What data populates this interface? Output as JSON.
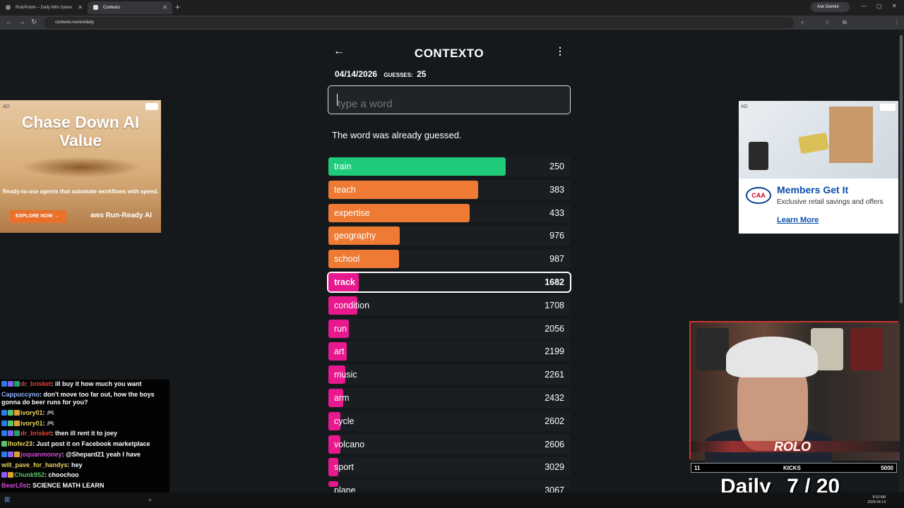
{
  "browser": {
    "tabs": [
      {
        "label": "RoloPolotv – Daily Mini Game"
      },
      {
        "label": "Contexto"
      }
    ],
    "url": "contexto.me/en/daily",
    "gemini_label": "Ask Gemini"
  },
  "game": {
    "title": "CONTEXTO",
    "date": "04/14/2026",
    "guesses_label": "GUESSES:",
    "guesses_count": "25",
    "input_placeholder": "type a word",
    "message": "The word was already guessed.",
    "guesses": [
      {
        "word": "train",
        "rank": "250",
        "color": "#1fcb7a",
        "fill": 0.73
      },
      {
        "word": "teach",
        "rank": "383",
        "color": "#ee7a33",
        "fill": 0.617
      },
      {
        "word": "expertise",
        "rank": "433",
        "color": "#ee7a33",
        "fill": 0.58
      },
      {
        "word": "geography",
        "rank": "976",
        "color": "#ee7a33",
        "fill": 0.295
      },
      {
        "word": "school",
        "rank": "987",
        "color": "#ee7a33",
        "fill": 0.29
      },
      {
        "word": "track",
        "rank": "1682",
        "color": "#e8188f",
        "fill": 0.125,
        "highlighted": true
      },
      {
        "word": "condition",
        "rank": "1708",
        "color": "#e8188f",
        "fill": 0.12
      },
      {
        "word": "run",
        "rank": "2056",
        "color": "#e8188f",
        "fill": 0.085
      },
      {
        "word": "art",
        "rank": "2199",
        "color": "#e8188f",
        "fill": 0.075
      },
      {
        "word": "music",
        "rank": "2261",
        "color": "#e8188f",
        "fill": 0.07
      },
      {
        "word": "arm",
        "rank": "2432",
        "color": "#e8188f",
        "fill": 0.06
      },
      {
        "word": "cycle",
        "rank": "2602",
        "color": "#e8188f",
        "fill": 0.05
      },
      {
        "word": "volcano",
        "rank": "2606",
        "color": "#e8188f",
        "fill": 0.05
      },
      {
        "word": "sport",
        "rank": "3029",
        "color": "#e8188f",
        "fill": 0.04
      },
      {
        "word": "plane",
        "rank": "3067",
        "color": "#e8188f",
        "fill": 0.04
      }
    ]
  },
  "ads": {
    "ad_label": "AD",
    "left": {
      "headline": "Chase Down AI Value",
      "sub": "Ready-to-use agents that automate workflows with speed.",
      "cta": "EXPLORE NOW →",
      "brand": "aws Run-Ready AI"
    },
    "right": {
      "logo": "CAA",
      "headline": "Members Get It",
      "body": "Exclusive retail savings and offers",
      "cta": "Learn More"
    }
  },
  "chat": [
    {
      "user": "dr_brisket",
      "color": "#e0453a",
      "text": ": ill buy it how much you want",
      "badges": [
        "#2a7be4",
        "#8a5cf0",
        "#1fa36a"
      ]
    },
    {
      "user": "Cappuccyno",
      "color": "#8fb4ff",
      "text": ": don't move too far out, how the boys gonna do beer runs for you?",
      "badges": []
    },
    {
      "user": "ivory01",
      "color": "#e8d35a",
      "text": ": 🎮",
      "badges": [
        "#2a7be4",
        "#57c46a",
        "#e0a030"
      ]
    },
    {
      "user": "ivory01",
      "color": "#e8d35a",
      "text": ": 🎮",
      "badges": [
        "#2a7be4",
        "#57c46a",
        "#e0a030"
      ]
    },
    {
      "user": "dr_brisket",
      "color": "#e0453a",
      "text": ": then ill rent it to joey",
      "badges": [
        "#2a7be4",
        "#8a5cf0",
        "#1fa36a"
      ]
    },
    {
      "user": "lhofer23",
      "color": "#e8d35a",
      "text": ": Just post it on Facebook marketplace",
      "badges": [
        "#57c46a"
      ]
    },
    {
      "user": "joquanmoney",
      "color": "#d04ad0",
      "text": ": @Shepard21 yeah I have",
      "badges": [
        "#2a7be4",
        "#8a5cf0",
        "#e0a030"
      ]
    },
    {
      "user": "will_pave_for_handys",
      "color": "#e8d35a",
      "text": ": hey",
      "badges": []
    },
    {
      "user": "Chunk952",
      "color": "#57c46a",
      "text": ": choochoo",
      "badges": [
        "#8a5cf0",
        "#e0a030"
      ]
    },
    {
      "user": "BearL0st",
      "color": "#d04ad0",
      "text": ": SCIENCE MATH LEARN",
      "badges": []
    }
  ],
  "stream": {
    "kicks_left": "11",
    "kicks_label": "KICKS",
    "kicks_right": "5000",
    "daily_label": "Daily",
    "daily_progress": "7 / 20",
    "cam_logo": "ROLO"
  },
  "taskbar": {
    "time": "8:53 AM",
    "date": "2026-04-14"
  }
}
